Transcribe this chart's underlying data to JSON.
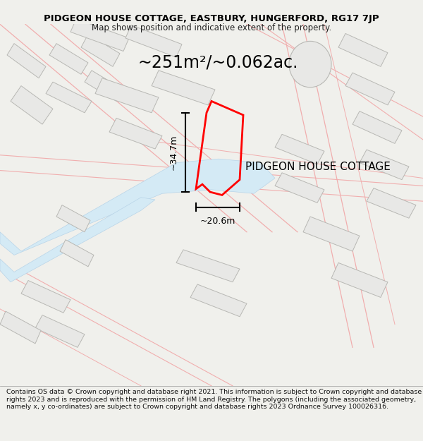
{
  "title": "PIDGEON HOUSE COTTAGE, EASTBURY, HUNGERFORD, RG17 7JP",
  "subtitle": "Map shows position and indicative extent of the property.",
  "area_text": "~251m²/~0.062ac.",
  "dim_height": "~34.7m",
  "dim_width": "~20.6m",
  "label": "PIDGEON HOUSE COTTAGE",
  "footer": "Contains OS data © Crown copyright and database right 2021. This information is subject to Crown copyright and database rights 2023 and is reproduced with the permission of HM Land Registry. The polygons (including the associated geometry, namely x, y co-ordinates) are subject to Crown copyright and database rights 2023 Ordnance Survey 100026316.",
  "bg_color": "#f0f0ec",
  "map_bg": "#ffffff",
  "building_fill": "#e8e8e6",
  "building_edge": "#b8b8b4",
  "road_line": "#f0aeae",
  "water_fill": "#d4eaf5",
  "water_edge": "#b8d4e8",
  "plot_color": "#ff0000",
  "plot_linewidth": 2.0,
  "dim_color": "#000000",
  "title_fontsize": 9.5,
  "subtitle_fontsize": 8.5,
  "area_fontsize": 17,
  "label_fontsize": 11,
  "footer_fontsize": 6.8
}
